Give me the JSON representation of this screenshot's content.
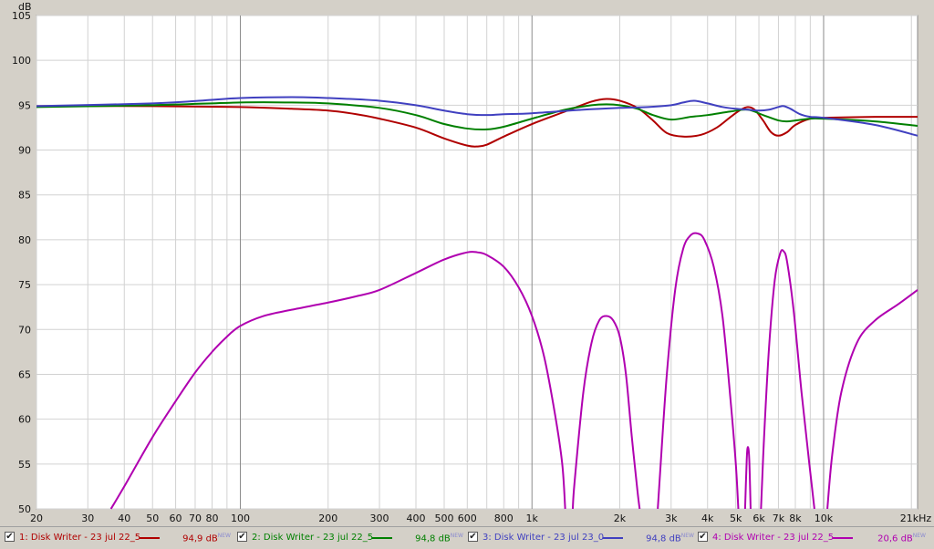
{
  "chart_data": {
    "type": "line",
    "x_scale": "log",
    "xlim": [
      20,
      21000
    ],
    "ylim": [
      50,
      105
    ],
    "ylabel": "dB",
    "grid": true,
    "x_ticks": [
      {
        "v": 20,
        "t": "20"
      },
      {
        "v": 30,
        "t": "30"
      },
      {
        "v": 40,
        "t": "40"
      },
      {
        "v": 50,
        "t": "50"
      },
      {
        "v": 60,
        "t": "60"
      },
      {
        "v": 70,
        "t": "70"
      },
      {
        "v": 80,
        "t": "80"
      },
      {
        "v": 100,
        "t": "100"
      },
      {
        "v": 200,
        "t": "200"
      },
      {
        "v": 300,
        "t": "300"
      },
      {
        "v": 400,
        "t": "400"
      },
      {
        "v": 500,
        "t": "500"
      },
      {
        "v": 600,
        "t": "600"
      },
      {
        "v": 800,
        "t": "800"
      },
      {
        "v": 1000,
        "t": "1k"
      },
      {
        "v": 2000,
        "t": "2k"
      },
      {
        "v": 3000,
        "t": "3k"
      },
      {
        "v": 4000,
        "t": "4k"
      },
      {
        "v": 5000,
        "t": "5k"
      },
      {
        "v": 6000,
        "t": "6k"
      },
      {
        "v": 7000,
        "t": "7k"
      },
      {
        "v": 8000,
        "t": "8k"
      },
      {
        "v": 10000,
        "t": "10k"
      },
      {
        "v": 21000,
        "t": "21kHz"
      }
    ],
    "y_ticks": [
      105,
      100,
      95,
      90,
      85,
      80,
      75,
      70,
      65,
      60,
      55,
      50
    ],
    "series": [
      {
        "name": "1: Disk Writer - 23 jul 22_5",
        "color": "#b00000",
        "value_label": "94,9 dB",
        "points": [
          [
            20,
            94.9
          ],
          [
            50,
            94.9
          ],
          [
            100,
            94.8
          ],
          [
            150,
            94.6
          ],
          [
            200,
            94.4
          ],
          [
            250,
            94.0
          ],
          [
            300,
            93.5
          ],
          [
            400,
            92.5
          ],
          [
            500,
            91.3
          ],
          [
            600,
            90.5
          ],
          [
            650,
            90.4
          ],
          [
            700,
            90.6
          ],
          [
            800,
            91.5
          ],
          [
            1000,
            92.9
          ],
          [
            1300,
            94.3
          ],
          [
            1600,
            95.4
          ],
          [
            1800,
            95.7
          ],
          [
            2000,
            95.5
          ],
          [
            2300,
            94.7
          ],
          [
            2600,
            93.3
          ],
          [
            2900,
            91.9
          ],
          [
            3300,
            91.5
          ],
          [
            3800,
            91.7
          ],
          [
            4300,
            92.5
          ],
          [
            4800,
            93.7
          ],
          [
            5200,
            94.5
          ],
          [
            5500,
            94.8
          ],
          [
            5800,
            94.5
          ],
          [
            6200,
            93.3
          ],
          [
            6600,
            92.0
          ],
          [
            7000,
            91.6
          ],
          [
            7500,
            92.0
          ],
          [
            8000,
            92.8
          ],
          [
            9000,
            93.5
          ],
          [
            10000,
            93.6
          ],
          [
            15000,
            93.7
          ],
          [
            21000,
            93.7
          ]
        ]
      },
      {
        "name": "2: Disk Writer - 23 jul 22_5",
        "color": "#008000",
        "value_label": "94,8 dB",
        "points": [
          [
            20,
            94.8
          ],
          [
            50,
            95.0
          ],
          [
            100,
            95.3
          ],
          [
            150,
            95.3
          ],
          [
            200,
            95.2
          ],
          [
            300,
            94.7
          ],
          [
            400,
            93.9
          ],
          [
            500,
            92.9
          ],
          [
            600,
            92.4
          ],
          [
            700,
            92.3
          ],
          [
            800,
            92.6
          ],
          [
            1000,
            93.5
          ],
          [
            1300,
            94.5
          ],
          [
            1600,
            95.0
          ],
          [
            1800,
            95.1
          ],
          [
            2000,
            95.0
          ],
          [
            2300,
            94.6
          ],
          [
            2600,
            93.9
          ],
          [
            3000,
            93.4
          ],
          [
            3500,
            93.7
          ],
          [
            4000,
            93.9
          ],
          [
            4800,
            94.3
          ],
          [
            5500,
            94.5
          ],
          [
            6200,
            93.9
          ],
          [
            7000,
            93.3
          ],
          [
            7500,
            93.2
          ],
          [
            8000,
            93.3
          ],
          [
            9000,
            93.5
          ],
          [
            10000,
            93.5
          ],
          [
            15000,
            93.2
          ],
          [
            21000,
            92.7
          ]
        ]
      },
      {
        "name": "3: Disk Writer - 23 jul 23_0",
        "color": "#4040c0",
        "value_label": "94,8 dB",
        "points": [
          [
            20,
            94.9
          ],
          [
            50,
            95.2
          ],
          [
            80,
            95.6
          ],
          [
            100,
            95.8
          ],
          [
            150,
            95.9
          ],
          [
            200,
            95.8
          ],
          [
            300,
            95.5
          ],
          [
            400,
            95.0
          ],
          [
            500,
            94.4
          ],
          [
            600,
            94.0
          ],
          [
            700,
            93.9
          ],
          [
            800,
            94.0
          ],
          [
            1000,
            94.1
          ],
          [
            1500,
            94.5
          ],
          [
            2000,
            94.7
          ],
          [
            2500,
            94.8
          ],
          [
            3000,
            95.0
          ],
          [
            3300,
            95.3
          ],
          [
            3600,
            95.5
          ],
          [
            4000,
            95.2
          ],
          [
            4500,
            94.8
          ],
          [
            5000,
            94.6
          ],
          [
            5500,
            94.5
          ],
          [
            6000,
            94.4
          ],
          [
            6500,
            94.5
          ],
          [
            7000,
            94.8
          ],
          [
            7300,
            94.9
          ],
          [
            7700,
            94.6
          ],
          [
            8300,
            94.0
          ],
          [
            9000,
            93.7
          ],
          [
            10000,
            93.6
          ],
          [
            15000,
            92.8
          ],
          [
            21000,
            91.6
          ]
        ]
      },
      {
        "name": "4: Disk Writer - 23 jul 22_5",
        "color": "#b000b0",
        "value_label": "20,6 dB",
        "points": [
          [
            36,
            50
          ],
          [
            40,
            52.5
          ],
          [
            50,
            58
          ],
          [
            60,
            62
          ],
          [
            70,
            65.2
          ],
          [
            80,
            67.5
          ],
          [
            90,
            69.2
          ],
          [
            100,
            70.4
          ],
          [
            120,
            71.5
          ],
          [
            150,
            72.2
          ],
          [
            200,
            73.0
          ],
          [
            250,
            73.7
          ],
          [
            300,
            74.4
          ],
          [
            400,
            76.3
          ],
          [
            500,
            77.8
          ],
          [
            600,
            78.6
          ],
          [
            650,
            78.6
          ],
          [
            700,
            78.3
          ],
          [
            800,
            77.0
          ],
          [
            900,
            74.7
          ],
          [
            1000,
            71.5
          ],
          [
            1100,
            67.0
          ],
          [
            1200,
            60.5
          ],
          [
            1270,
            55
          ],
          [
            1300,
            50
          ],
          [
            null,
            null
          ],
          [
            1380,
            50
          ],
          [
            1400,
            53
          ],
          [
            1500,
            63
          ],
          [
            1600,
            68.5
          ],
          [
            1700,
            71.0
          ],
          [
            1800,
            71.5
          ],
          [
            1900,
            71.0
          ],
          [
            2000,
            69.2
          ],
          [
            2100,
            65.0
          ],
          [
            2200,
            58.0
          ],
          [
            2300,
            52.0
          ],
          [
            2340,
            50
          ],
          [
            null,
            null
          ],
          [
            2700,
            50
          ],
          [
            2750,
            54
          ],
          [
            2900,
            65
          ],
          [
            3100,
            74.5
          ],
          [
            3300,
            79.0
          ],
          [
            3500,
            80.5
          ],
          [
            3700,
            80.7
          ],
          [
            3900,
            80.0
          ],
          [
            4200,
            77.0
          ],
          [
            4500,
            71.5
          ],
          [
            4800,
            62.0
          ],
          [
            5000,
            55.0
          ],
          [
            5100,
            50
          ],
          [
            null,
            null
          ],
          [
            5380,
            50
          ],
          [
            5450,
            55.5
          ],
          [
            5500,
            56.9
          ],
          [
            5560,
            55.5
          ],
          [
            5620,
            50
          ],
          [
            null,
            null
          ],
          [
            6100,
            50
          ],
          [
            6250,
            58.0
          ],
          [
            6500,
            68.0
          ],
          [
            6800,
            75.5
          ],
          [
            7100,
            78.5
          ],
          [
            7300,
            78.7
          ],
          [
            7500,
            77.5
          ],
          [
            7900,
            72.0
          ],
          [
            8400,
            63.0
          ],
          [
            8900,
            55.5
          ],
          [
            9300,
            50
          ],
          [
            null,
            null
          ],
          [
            10300,
            50
          ],
          [
            10700,
            56
          ],
          [
            11500,
            63.0
          ],
          [
            13000,
            68.5
          ],
          [
            15000,
            71.0
          ],
          [
            18000,
            72.8
          ],
          [
            21000,
            74.4
          ]
        ]
      }
    ]
  },
  "legend": [
    {
      "label": "1: Disk Writer - 23 jul 22_5",
      "value": "94,9 dB",
      "badge": "NEW",
      "color": "#b00000",
      "checked": true
    },
    {
      "label": "2: Disk Writer - 23 jul 22_5",
      "value": "94,8 dB",
      "badge": "NEW",
      "color": "#008000",
      "checked": true
    },
    {
      "label": "3: Disk Writer - 23 jul 23_0",
      "value": "94,8 dB",
      "badge": "NEW",
      "color": "#4040c0",
      "checked": true
    },
    {
      "label": "4: Disk Writer - 23 jul 22_5",
      "value": "20,6 dB",
      "badge": "NEW",
      "color": "#b000b0",
      "checked": true
    }
  ],
  "check_glyph": "✔"
}
